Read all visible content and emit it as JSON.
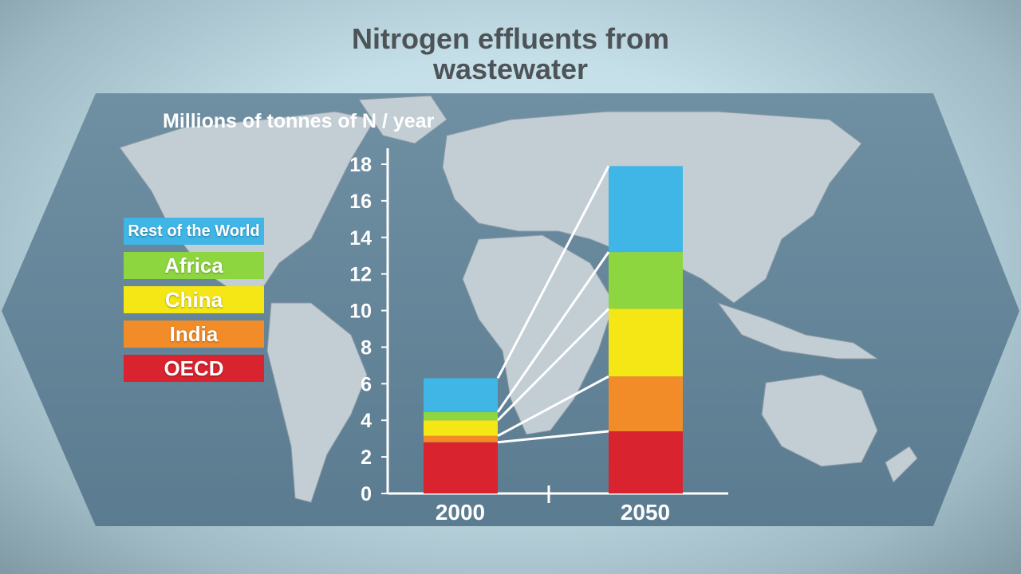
{
  "title_lines": [
    "Nitrogen effluents from",
    "wastewater"
  ],
  "chart_data": {
    "type": "bar",
    "stacked": true,
    "title": "Nitrogen effluents from wastewater",
    "ylabel": "Millions of tonnes of N / year",
    "xlabel": "",
    "ylim": [
      0,
      18
    ],
    "yticks": [
      0,
      2,
      4,
      6,
      8,
      10,
      12,
      14,
      16,
      18
    ],
    "categories": [
      "2000",
      "2050"
    ],
    "series": [
      {
        "name": "OECD",
        "color": "#d9232f",
        "values": [
          2.8,
          3.4
        ]
      },
      {
        "name": "India",
        "color": "#f28c28",
        "values": [
          0.35,
          3.0
        ]
      },
      {
        "name": "China",
        "color": "#f5e616",
        "values": [
          0.85,
          3.7
        ]
      },
      {
        "name": "Africa",
        "color": "#8ed63f",
        "values": [
          0.45,
          3.1
        ]
      },
      {
        "name": "Rest of the World",
        "color": "#3fb6e6",
        "values": [
          1.85,
          4.7
        ]
      }
    ],
    "legend_order": [
      "Rest of the World",
      "Africa",
      "China",
      "India",
      "OECD"
    ],
    "legend_position": "left",
    "grid": false,
    "connector_lines": true
  }
}
